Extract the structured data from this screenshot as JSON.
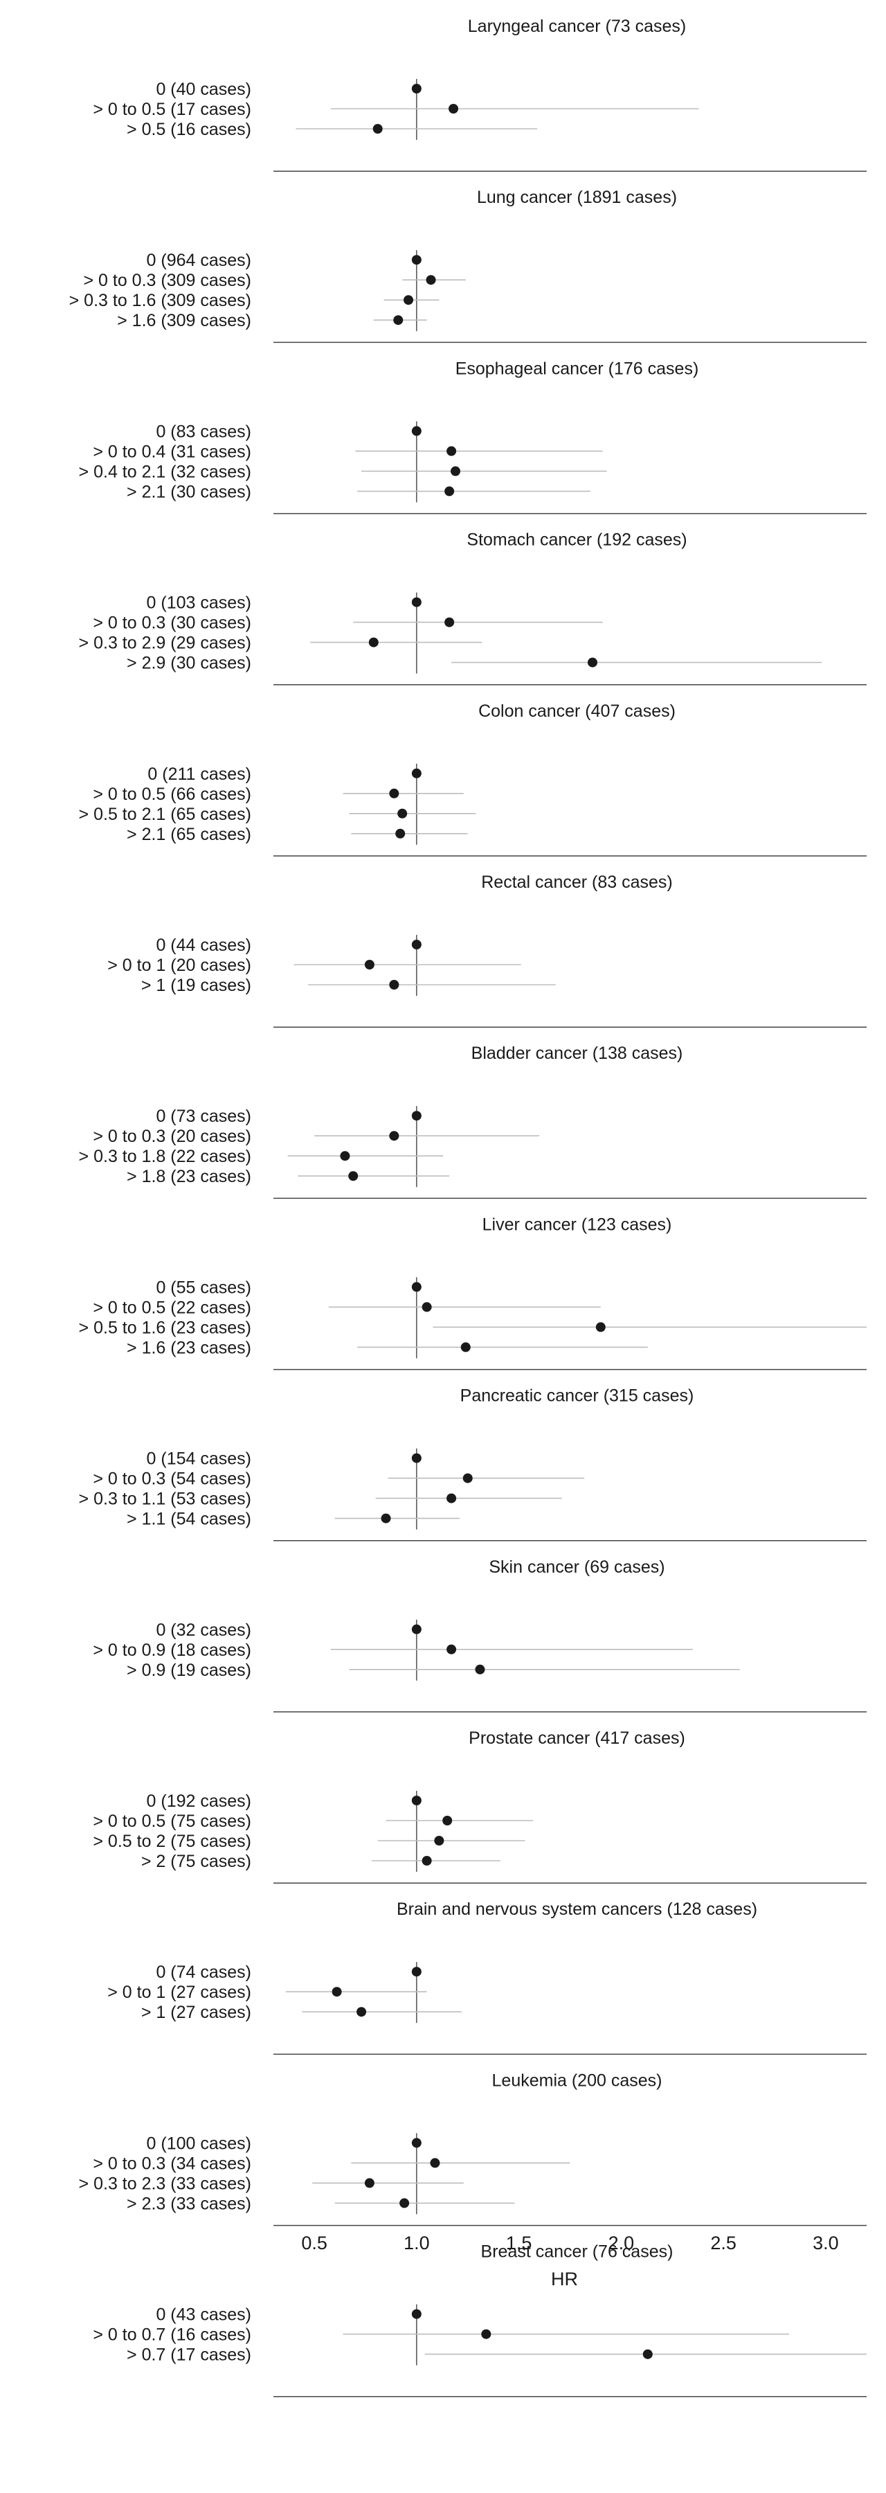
{
  "chart_data": {
    "type": "forest",
    "xlabel": "HR",
    "xlim": [
      0.3,
      3.2
    ],
    "xticks": [
      0.5,
      1.0,
      1.5,
      2.0,
      2.5,
      3.0
    ],
    "xtick_labels": [
      "0.5",
      "1.0",
      "1.5",
      "2.0",
      "2.5",
      "3.0"
    ],
    "reference_line": 1.0,
    "panels": [
      {
        "title": "Laryngeal cancer (73 cases)",
        "rows": [
          {
            "label": "0 (40 cases)",
            "hr": 1.0,
            "lo": 1.0,
            "hi": 1.0
          },
          {
            "label": "> 0 to 0.5 (17 cases)",
            "hr": 1.18,
            "lo": 0.58,
            "hi": 2.38
          },
          {
            "label": "> 0.5 (16 cases)",
            "hr": 0.81,
            "lo": 0.41,
            "hi": 1.59
          }
        ]
      },
      {
        "title": "Lung cancer (1891 cases)",
        "rows": [
          {
            "label": "0 (964 cases)",
            "hr": 1.0,
            "lo": 1.0,
            "hi": 1.0
          },
          {
            "label": "> 0 to 0.3 (309 cases)",
            "hr": 1.07,
            "lo": 0.93,
            "hi": 1.24
          },
          {
            "label": "> 0.3 to 1.6 (309 cases)",
            "hr": 0.96,
            "lo": 0.84,
            "hi": 1.11
          },
          {
            "label": "> 1.6 (309 cases)",
            "hr": 0.91,
            "lo": 0.79,
            "hi": 1.05
          }
        ]
      },
      {
        "title": "Esophageal cancer (176 cases)",
        "rows": [
          {
            "label": "0 (83 cases)",
            "hr": 1.0,
            "lo": 1.0,
            "hi": 1.0
          },
          {
            "label": "> 0 to 0.4 (31 cases)",
            "hr": 1.17,
            "lo": 0.7,
            "hi": 1.91
          },
          {
            "label": "> 0.4 to 2.1 (32 cases)",
            "hr": 1.19,
            "lo": 0.73,
            "hi": 1.93
          },
          {
            "label": "> 2.1 (30 cases)",
            "hr": 1.16,
            "lo": 0.71,
            "hi": 1.85
          }
        ]
      },
      {
        "title": "Stomach cancer (192 cases)",
        "rows": [
          {
            "label": "0 (103 cases)",
            "hr": 1.0,
            "lo": 1.0,
            "hi": 1.0
          },
          {
            "label": "> 0 to 0.3 (30 cases)",
            "hr": 1.16,
            "lo": 0.69,
            "hi": 1.91
          },
          {
            "label": "> 0.3 to 2.9 (29 cases)",
            "hr": 0.79,
            "lo": 0.48,
            "hi": 1.32
          },
          {
            "label": "> 2.9 (30 cases)",
            "hr": 1.86,
            "lo": 1.17,
            "hi": 2.98
          }
        ]
      },
      {
        "title": "Colon cancer (407 cases)",
        "rows": [
          {
            "label": "0 (211 cases)",
            "hr": 1.0,
            "lo": 1.0,
            "hi": 1.0
          },
          {
            "label": "> 0 to 0.5 (66 cases)",
            "hr": 0.89,
            "lo": 0.64,
            "hi": 1.23
          },
          {
            "label": "> 0.5 to 2.1 (65 cases)",
            "hr": 0.93,
            "lo": 0.67,
            "hi": 1.29
          },
          {
            "label": "> 2.1 (65 cases)",
            "hr": 0.92,
            "lo": 0.68,
            "hi": 1.25
          }
        ]
      },
      {
        "title": "Rectal cancer (83 cases)",
        "rows": [
          {
            "label": "0 (44 cases)",
            "hr": 1.0,
            "lo": 1.0,
            "hi": 1.0
          },
          {
            "label": "> 0 to 1 (20 cases)",
            "hr": 0.77,
            "lo": 0.4,
            "hi": 1.51
          },
          {
            "label": "> 1 (19 cases)",
            "hr": 0.89,
            "lo": 0.47,
            "hi": 1.68
          }
        ]
      },
      {
        "title": "Bladder cancer (138 cases)",
        "rows": [
          {
            "label": "0 (73 cases)",
            "hr": 1.0,
            "lo": 1.0,
            "hi": 1.0
          },
          {
            "label": "> 0 to 0.3 (20 cases)",
            "hr": 0.89,
            "lo": 0.5,
            "hi": 1.6
          },
          {
            "label": "> 0.3 to 1.8 (22 cases)",
            "hr": 0.65,
            "lo": 0.37,
            "hi": 1.13
          },
          {
            "label": "> 1.8 (23 cases)",
            "hr": 0.69,
            "lo": 0.42,
            "hi": 1.16
          }
        ]
      },
      {
        "title": "Liver cancer (123 cases)",
        "rows": [
          {
            "label": "0 (55 cases)",
            "hr": 1.0,
            "lo": 1.0,
            "hi": 1.0
          },
          {
            "label": "> 0 to 0.5 (22 cases)",
            "hr": 1.05,
            "lo": 0.57,
            "hi": 1.9
          },
          {
            "label": "> 0.5 to 1.6 (23 cases)",
            "hr": 1.9,
            "lo": 1.08,
            "hi": 3.38
          },
          {
            "label": "> 1.6 (23 cases)",
            "hr": 1.24,
            "lo": 0.71,
            "hi": 2.13
          }
        ]
      },
      {
        "title": "Pancreatic cancer (315 cases)",
        "rows": [
          {
            "label": "0 (154 cases)",
            "hr": 1.0,
            "lo": 1.0,
            "hi": 1.0
          },
          {
            "label": "> 0 to 0.3 (54 cases)",
            "hr": 1.25,
            "lo": 0.86,
            "hi": 1.82
          },
          {
            "label": "> 0.3 to 1.1 (53 cases)",
            "hr": 1.17,
            "lo": 0.8,
            "hi": 1.71
          },
          {
            "label": "> 1.1 (54 cases)",
            "hr": 0.85,
            "lo": 0.6,
            "hi": 1.21
          }
        ]
      },
      {
        "title": "Skin cancer (69 cases)",
        "rows": [
          {
            "label": "0 (32 cases)",
            "hr": 1.0,
            "lo": 1.0,
            "hi": 1.0
          },
          {
            "label": "> 0 to 0.9 (18 cases)",
            "hr": 1.17,
            "lo": 0.58,
            "hi": 2.35
          },
          {
            "label": "> 0.9 (19 cases)",
            "hr": 1.31,
            "lo": 0.67,
            "hi": 2.58
          }
        ]
      },
      {
        "title": "Prostate cancer (417 cases)",
        "rows": [
          {
            "label": "0 (192 cases)",
            "hr": 1.0,
            "lo": 1.0,
            "hi": 1.0
          },
          {
            "label": "> 0 to 0.5 (75 cases)",
            "hr": 1.15,
            "lo": 0.85,
            "hi": 1.57
          },
          {
            "label": "> 0.5 to 2 (75 cases)",
            "hr": 1.11,
            "lo": 0.81,
            "hi": 1.53
          },
          {
            "label": "> 2 (75 cases)",
            "hr": 1.05,
            "lo": 0.78,
            "hi": 1.41
          }
        ]
      },
      {
        "title": "Brain and nervous system cancers (128 cases)",
        "rows": [
          {
            "label": "0 (74 cases)",
            "hr": 1.0,
            "lo": 1.0,
            "hi": 1.0
          },
          {
            "label": "> 0 to 1 (27 cases)",
            "hr": 0.61,
            "lo": 0.36,
            "hi": 1.05
          },
          {
            "label": "> 1 (27 cases)",
            "hr": 0.73,
            "lo": 0.44,
            "hi": 1.22
          }
        ]
      },
      {
        "title": "Leukemia (200 cases)",
        "rows": [
          {
            "label": "0 (100 cases)",
            "hr": 1.0,
            "lo": 1.0,
            "hi": 1.0
          },
          {
            "label": "> 0 to 0.3 (34 cases)",
            "hr": 1.09,
            "lo": 0.68,
            "hi": 1.75
          },
          {
            "label": "> 0.3 to 2.3 (33 cases)",
            "hr": 0.77,
            "lo": 0.49,
            "hi": 1.23
          },
          {
            "label": "> 2.3 (33 cases)",
            "hr": 0.94,
            "lo": 0.6,
            "hi": 1.48
          }
        ]
      },
      {
        "title": "Breast cancer (76 cases)",
        "rows": [
          {
            "label": "0 (43 cases)",
            "hr": 1.0,
            "lo": 1.0,
            "hi": 1.0
          },
          {
            "label": "> 0 to 0.7 (16 cases)",
            "hr": 1.34,
            "lo": 0.64,
            "hi": 2.82
          },
          {
            "label": "> 0.7 (17 cases)",
            "hr": 2.13,
            "lo": 1.04,
            "hi": 3.38
          }
        ]
      }
    ]
  }
}
